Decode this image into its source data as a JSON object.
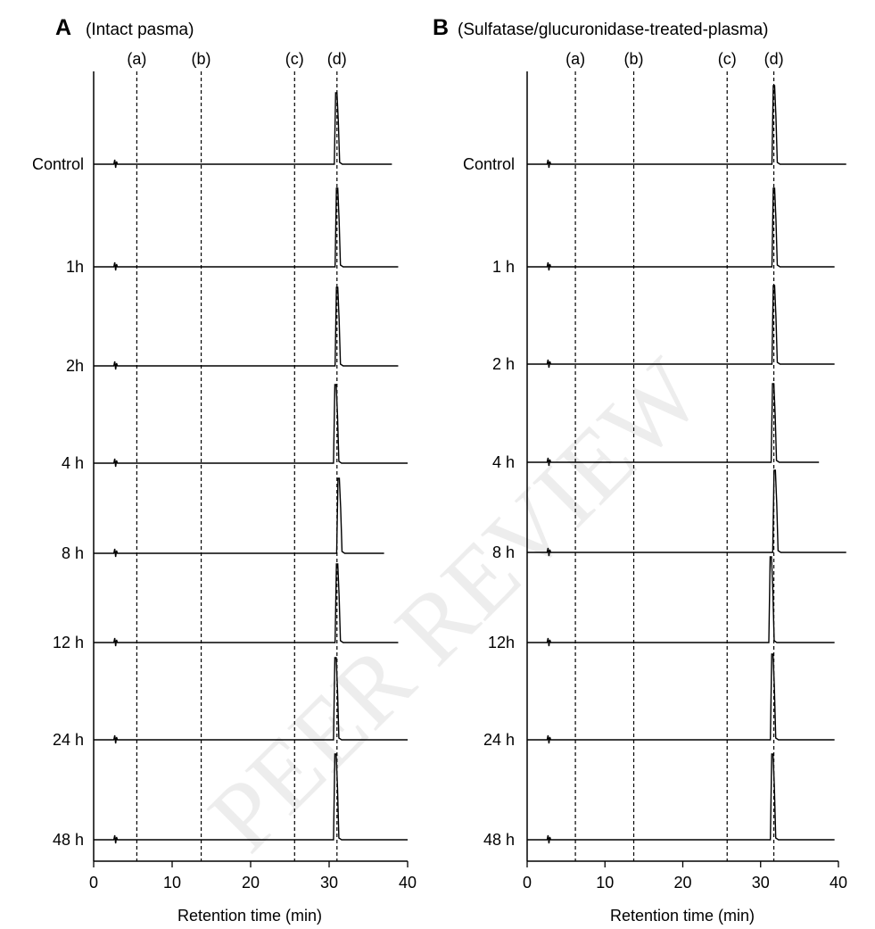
{
  "watermark": "PEER REVIEW",
  "chart_data": [
    {
      "type": "line",
      "panel_label": "A",
      "title": "(Intact pasma)",
      "xlabel": "Retention time (min)",
      "ylabel": "",
      "xlim": [
        0,
        40
      ],
      "xticks": [
        0,
        10,
        20,
        30,
        40
      ],
      "grid": false,
      "reference_lines": [
        {
          "label": "(a)",
          "x": 5.5
        },
        {
          "label": "(b)",
          "x": 13.7
        },
        {
          "label": "(c)",
          "x": 25.6
        },
        {
          "label": "(d)",
          "x": 31.0
        }
      ],
      "series": [
        {
          "name": "Control",
          "end_x": 38.0,
          "peak_x": 31.0,
          "peak_height": 1.0
        },
        {
          "name": "1h",
          "end_x": 38.8,
          "peak_x": 31.1,
          "peak_height": 1.1
        },
        {
          "name": "2h",
          "end_x": 38.8,
          "peak_x": 31.1,
          "peak_height": 1.1
        },
        {
          "name": "4 h",
          "end_x": 40.0,
          "peak_x": 30.9,
          "peak_height": 1.1
        },
        {
          "name": "8 h",
          "end_x": 37.0,
          "peak_x": 31.3,
          "peak_height": 1.05
        },
        {
          "name": "12 h",
          "end_x": 38.8,
          "peak_x": 31.1,
          "peak_height": 1.1
        },
        {
          "name": "24 h",
          "end_x": 40.0,
          "peak_x": 30.9,
          "peak_height": 1.15
        },
        {
          "name": "48 h",
          "end_x": 40.0,
          "peak_x": 30.9,
          "peak_height": 1.2
        }
      ]
    },
    {
      "type": "line",
      "panel_label": "B",
      "title": "(Sulfatase/glucuronidase-treated-plasma)",
      "xlabel": "Retention time (min)",
      "ylabel": "",
      "xlim": [
        0,
        40
      ],
      "xticks": [
        0,
        10,
        20,
        30,
        40
      ],
      "grid": false,
      "reference_lines": [
        {
          "label": "(a)",
          "x": 6.2
        },
        {
          "label": "(b)",
          "x": 13.7
        },
        {
          "label": "(c)",
          "x": 25.7
        },
        {
          "label": "(d)",
          "x": 31.7
        }
      ],
      "series": [
        {
          "name": "Control",
          "end_x": 41.0,
          "peak_x": 31.8,
          "peak_height": 1.1
        },
        {
          "name": "1 h",
          "end_x": 39.5,
          "peak_x": 31.8,
          "peak_height": 1.1
        },
        {
          "name": "2 h",
          "end_x": 39.5,
          "peak_x": 31.8,
          "peak_height": 1.1
        },
        {
          "name": "4 h",
          "end_x": 37.5,
          "peak_x": 31.7,
          "peak_height": 1.1
        },
        {
          "name": "8 h",
          "end_x": 41.0,
          "peak_x": 31.9,
          "peak_height": 1.15
        },
        {
          "name": "12h",
          "end_x": 39.5,
          "peak_x": 31.4,
          "peak_height": 1.2
        },
        {
          "name": "24 h",
          "end_x": 39.5,
          "peak_x": 31.6,
          "peak_height": 1.2
        },
        {
          "name": "48 h",
          "end_x": 39.5,
          "peak_x": 31.6,
          "peak_height": 1.2
        }
      ]
    }
  ]
}
